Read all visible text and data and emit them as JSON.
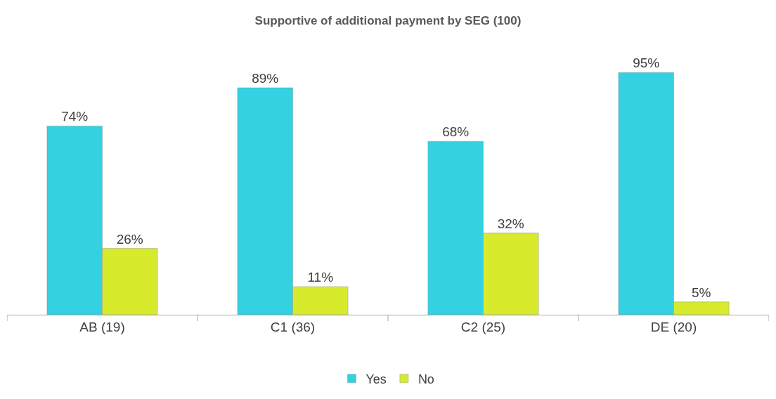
{
  "chart_data": {
    "type": "bar",
    "title": "Supportive of additional payment by SEG (100)",
    "categories": [
      "AB (19)",
      "C1 (36)",
      "C2 (25)",
      "DE (20)"
    ],
    "series": [
      {
        "name": "Yes",
        "color": "#33d1e1",
        "values": [
          74,
          89,
          68,
          95
        ],
        "value_labels": [
          "74%",
          "89%",
          "68%",
          "95%"
        ]
      },
      {
        "name": "No",
        "color": "#d8ea2c",
        "values": [
          26,
          11,
          32,
          5
        ],
        "value_labels": [
          "26%",
          "11%",
          "32%",
          "5%"
        ]
      }
    ],
    "legend": "bottom"
  }
}
